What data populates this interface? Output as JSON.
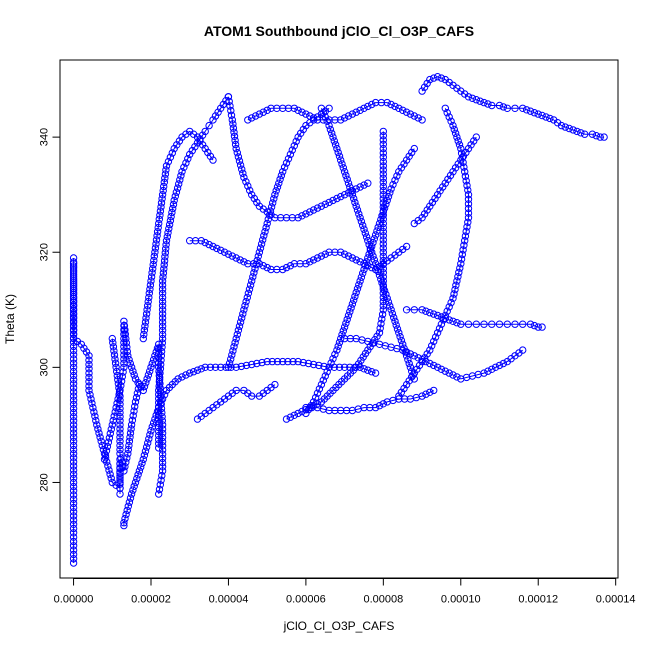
{
  "chart_data": {
    "type": "scatter",
    "title": "ATOM1 Southbound jClO_Cl_O3P_CAFS",
    "xlabel": "jClO_Cl_O3P_CAFS",
    "ylabel": "Theta (K)",
    "xlim": [
      -3.5e-06,
      0.0001406
    ],
    "ylim": [
      263.4,
      353.4
    ],
    "x_ticks": [
      {
        "value": 0.0,
        "label": "0.00000"
      },
      {
        "value": 2e-05,
        "label": "0.00002"
      },
      {
        "value": 4e-05,
        "label": "0.00004"
      },
      {
        "value": 6e-05,
        "label": "0.00006"
      },
      {
        "value": 8e-05,
        "label": "0.00008"
      },
      {
        "value": 0.0001,
        "label": "0.00010"
      },
      {
        "value": 0.00012,
        "label": "0.00012"
      },
      {
        "value": 0.00014,
        "label": "0.00014"
      }
    ],
    "y_ticks": [
      {
        "value": 280,
        "label": "280"
      },
      {
        "value": 300,
        "label": "300"
      },
      {
        "value": 320,
        "label": "320"
      },
      {
        "value": 340,
        "label": "340"
      }
    ],
    "marker": "open-circle",
    "line_connected": true,
    "color": "#0000ff",
    "series": [
      {
        "x": [
          0.0,
          0.0,
          0.0,
          0.0,
          0.0,
          0.0,
          0.0,
          0.0,
          0.0,
          0.0,
          2e-06,
          4e-06,
          4e-06,
          6e-06,
          8e-06,
          1e-05,
          1.2e-05,
          1.2e-05,
          1.2e-05,
          1.2e-05
        ],
        "y": [
          266,
          272,
          280,
          290,
          300,
          308,
          313,
          318,
          319,
          305,
          304,
          302,
          296,
          290,
          285,
          280,
          279,
          284,
          280,
          278
        ]
      },
      {
        "x": [
          8e-06,
          1e-05,
          1.2e-05,
          1.3e-05,
          1.3e-05,
          1.3e-05,
          1.4e-05,
          1.6e-05,
          1.8e-05,
          2e-05,
          2.2e-05,
          2.2e-05,
          2.3e-05,
          2.3e-05,
          2.2e-05
        ],
        "y": [
          284,
          290,
          296,
          300,
          305,
          308,
          302,
          298,
          296,
          300,
          304,
          300,
          290,
          282,
          278
        ]
      },
      {
        "x": [
          2.2e-05,
          2.2e-05,
          2.3e-05,
          2.3e-05,
          2.4e-05,
          2.6e-05,
          2.8e-05,
          3e-05,
          3.2e-05,
          3.4e-05,
          3.5e-05,
          3.6e-05,
          3.8e-05,
          4e-05
        ],
        "y": [
          286,
          296,
          305,
          315,
          322,
          329,
          334,
          337,
          339,
          341,
          342,
          343,
          345,
          347
        ]
      },
      {
        "x": [
          1.3e-05,
          1.3e-05,
          1.5e-05,
          1.8e-05,
          2e-05,
          2.2e-05,
          2.4e-05,
          2.7e-05,
          3e-05,
          3.4e-05,
          3.8e-05,
          4.2e-05,
          4.6e-05,
          5e-05,
          5.4e-05,
          5.8e-05,
          6.2e-05,
          6.6e-05,
          7e-05,
          7.4e-05,
          7.8e-05
        ],
        "y": [
          272.5,
          273,
          278,
          284,
          289,
          293,
          296,
          298,
          299,
          300,
          300,
          300,
          300.5,
          301,
          301,
          301,
          300.5,
          300,
          300,
          300,
          299
        ]
      },
      {
        "x": [
          4e-05,
          4.1e-05,
          4.2e-05,
          4.4e-05,
          4.6e-05,
          4.8e-05,
          5e-05,
          5.2e-05,
          5.5e-05,
          5.8e-05,
          6.1e-05,
          6.4e-05,
          6.7e-05,
          7e-05,
          7.3e-05,
          7.6e-05
        ],
        "y": [
          347,
          343,
          338,
          333,
          330,
          328,
          327,
          326,
          326,
          326,
          327,
          328,
          329,
          330,
          331,
          332
        ]
      },
      {
        "x": [
          3e-05,
          3.3e-05,
          3.6e-05,
          3.9e-05,
          4.2e-05,
          4.5e-05,
          4.8e-05,
          5.1e-05,
          5.4e-05,
          5.7e-05,
          6e-05,
          6.3e-05,
          6.6e-05,
          6.9e-05,
          7.2e-05,
          7.5e-05,
          7.8e-05,
          8e-05,
          8.2e-05,
          8.4e-05,
          8.6e-05
        ],
        "y": [
          322,
          322,
          321,
          320,
          319,
          318,
          318,
          317,
          317,
          318,
          318,
          319,
          320,
          320,
          319,
          318,
          317,
          318,
          319,
          320,
          321
        ]
      },
      {
        "x": [
          5.5e-05,
          5.8e-05,
          6.1e-05,
          6.4e-05,
          6.7e-05,
          7e-05,
          7.3e-05,
          7.6e-05,
          7.9e-05,
          8e-05,
          8e-05,
          8e-05,
          8e-05,
          8e-05,
          8e-05,
          8e-05
        ],
        "y": [
          291,
          292,
          293,
          294,
          296,
          298,
          300,
          303,
          306,
          310,
          315,
          320,
          325,
          330,
          335,
          341
        ]
      },
      {
        "x": [
          4.5e-05,
          4.8e-05,
          5.1e-05,
          5.4e-05,
          5.7e-05,
          6e-05,
          6.3e-05,
          6.6e-05,
          6.9e-05,
          7.2e-05,
          7.5e-05,
          7.8e-05,
          8.1e-05,
          8.4e-05,
          8.7e-05,
          9e-05
        ],
        "y": [
          343,
          344,
          345,
          345,
          345,
          344,
          343,
          343,
          343,
          344,
          345,
          346,
          346,
          345,
          344,
          343
        ]
      },
      {
        "x": [
          6e-05,
          6.2e-05,
          6.4e-05,
          6.6e-05,
          6.8e-05,
          7e-05,
          7.2e-05,
          7.4e-05,
          7.6e-05,
          7.8e-05,
          8e-05,
          8.2e-05,
          8.4e-05,
          8.6e-05,
          8.8e-05
        ],
        "y": [
          292,
          294,
          297,
          300,
          303,
          307,
          311,
          315,
          319,
          323,
          327,
          331,
          334,
          336,
          338
        ]
      },
      {
        "x": [
          9e-05,
          9.2e-05,
          9.4e-05,
          9.6e-05,
          9.8e-05,
          0.0001,
          0.000102,
          0.000104,
          0.000106,
          0.000108,
          0.00011,
          0.000112,
          0.000114,
          0.000116,
          0.000118,
          0.00012,
          0.000122,
          0.000124,
          0.000126,
          0.000128,
          0.00013,
          0.000132,
          0.000134,
          0.000136,
          0.000137
        ],
        "y": [
          348,
          350,
          350.5,
          350,
          349,
          348,
          347,
          346.5,
          346,
          345.5,
          345.5,
          345,
          345,
          345,
          344.5,
          344,
          343.5,
          343,
          342,
          341.5,
          341,
          340.5,
          340.5,
          340,
          340
        ]
      },
      {
        "x": [
          9.6e-05,
          9.8e-05,
          0.0001,
          0.000101,
          0.000102,
          0.000102,
          0.000101,
          0.0001,
          9.9e-05,
          9.8e-05,
          9.6e-05,
          9.4e-05,
          9.2e-05,
          9e-05,
          8.8e-05,
          8.6e-05,
          8.4e-05
        ],
        "y": [
          345,
          342,
          338,
          334,
          330,
          326,
          322,
          318,
          315,
          312,
          309,
          306,
          303,
          301,
          299,
          297,
          295
        ]
      },
      {
        "x": [
          8.6e-05,
          8.8e-05,
          9e-05,
          9.2e-05,
          9.4e-05,
          9.6e-05,
          9.8e-05,
          0.0001,
          0.000102,
          0.000104,
          0.000106,
          0.000108,
          0.00011,
          0.000112,
          0.000114,
          0.000116,
          0.000118,
          0.00012,
          0.000121
        ],
        "y": [
          310,
          310,
          310,
          309.5,
          309,
          308.5,
          308,
          307.5,
          307.5,
          307.5,
          307.5,
          307.5,
          307.5,
          307.5,
          307.5,
          307.5,
          307.5,
          307,
          307
        ]
      },
      {
        "x": [
          7e-05,
          7.3e-05,
          7.6e-05,
          7.9e-05,
          8.2e-05,
          8.5e-05,
          8.8e-05,
          9.1e-05,
          9.4e-05,
          9.7e-05,
          0.0001,
          0.000103,
          0.000106,
          0.000109,
          0.000112,
          0.000114,
          0.000116
        ],
        "y": [
          305,
          305,
          304.5,
          304,
          303.5,
          303,
          302,
          301,
          300,
          299,
          298,
          298.5,
          299,
          300,
          301,
          302,
          303
        ]
      },
      {
        "x": [
          6e-05,
          6.3e-05,
          6.6e-05,
          6.9e-05,
          7.2e-05,
          7.5e-05,
          7.8e-05,
          8.1e-05,
          8.4e-05,
          8.7e-05,
          9e-05,
          9.3e-05
        ],
        "y": [
          293,
          293,
          292.5,
          292.5,
          292.5,
          293,
          293,
          294,
          294.5,
          294.5,
          295,
          296
        ]
      },
      {
        "x": [
          3.2e-05,
          3.4e-05,
          3.6e-05,
          3.8e-05,
          4e-05,
          4.2e-05,
          4.4e-05,
          4.6e-05,
          4.8e-05,
          5e-05,
          5.2e-05
        ],
        "y": [
          291,
          292,
          293,
          294,
          295,
          296,
          296,
          295,
          295,
          296,
          297
        ]
      },
      {
        "x": [
          1.8e-05,
          1.9e-05,
          2e-05,
          2.1e-05,
          2.2e-05,
          2.3e-05,
          2.4e-05,
          2.6e-05,
          2.8e-05,
          3e-05,
          3.2e-05,
          3.4e-05,
          3.6e-05
        ],
        "y": [
          305,
          310,
          315,
          320,
          325,
          330,
          335,
          338,
          340,
          341,
          340,
          338,
          336
        ]
      },
      {
        "x": [
          4e-05,
          4.2e-05,
          4.4e-05,
          4.6e-05,
          4.8e-05,
          5e-05,
          5.2e-05,
          5.4e-05,
          5.6e-05,
          5.8e-05,
          6e-05,
          6.2e-05,
          6.4e-05,
          6.6e-05
        ],
        "y": [
          300,
          305,
          310,
          315,
          320,
          325,
          330,
          334,
          337,
          340,
          342,
          343,
          344,
          345
        ]
      },
      {
        "x": [
          6.4e-05,
          6.6e-05,
          6.8e-05,
          7e-05,
          7.2e-05,
          7.4e-05,
          7.6e-05,
          7.8e-05,
          8e-05,
          8.2e-05,
          8.4e-05,
          8.6e-05,
          8.8e-05
        ],
        "y": [
          345,
          342,
          338,
          334,
          330,
          326,
          322,
          318,
          314,
          310,
          306,
          302,
          298
        ]
      },
      {
        "x": [
          8.8e-05,
          9e-05,
          9.2e-05,
          9.4e-05,
          9.6e-05,
          9.8e-05,
          0.0001,
          0.000102,
          0.000104
        ],
        "y": [
          325,
          326,
          328,
          330,
          332,
          334,
          336,
          338,
          340
        ]
      },
      {
        "x": [
          1e-05,
          1.1e-05,
          1.2e-05,
          1.2e-05,
          1.2e-05,
          1.3e-05,
          1.4e-05,
          1.5e-05,
          1.6e-05,
          1.7e-05
        ],
        "y": [
          305,
          300,
          295,
          290,
          285,
          282,
          285,
          290,
          294,
          297
        ]
      }
    ]
  }
}
